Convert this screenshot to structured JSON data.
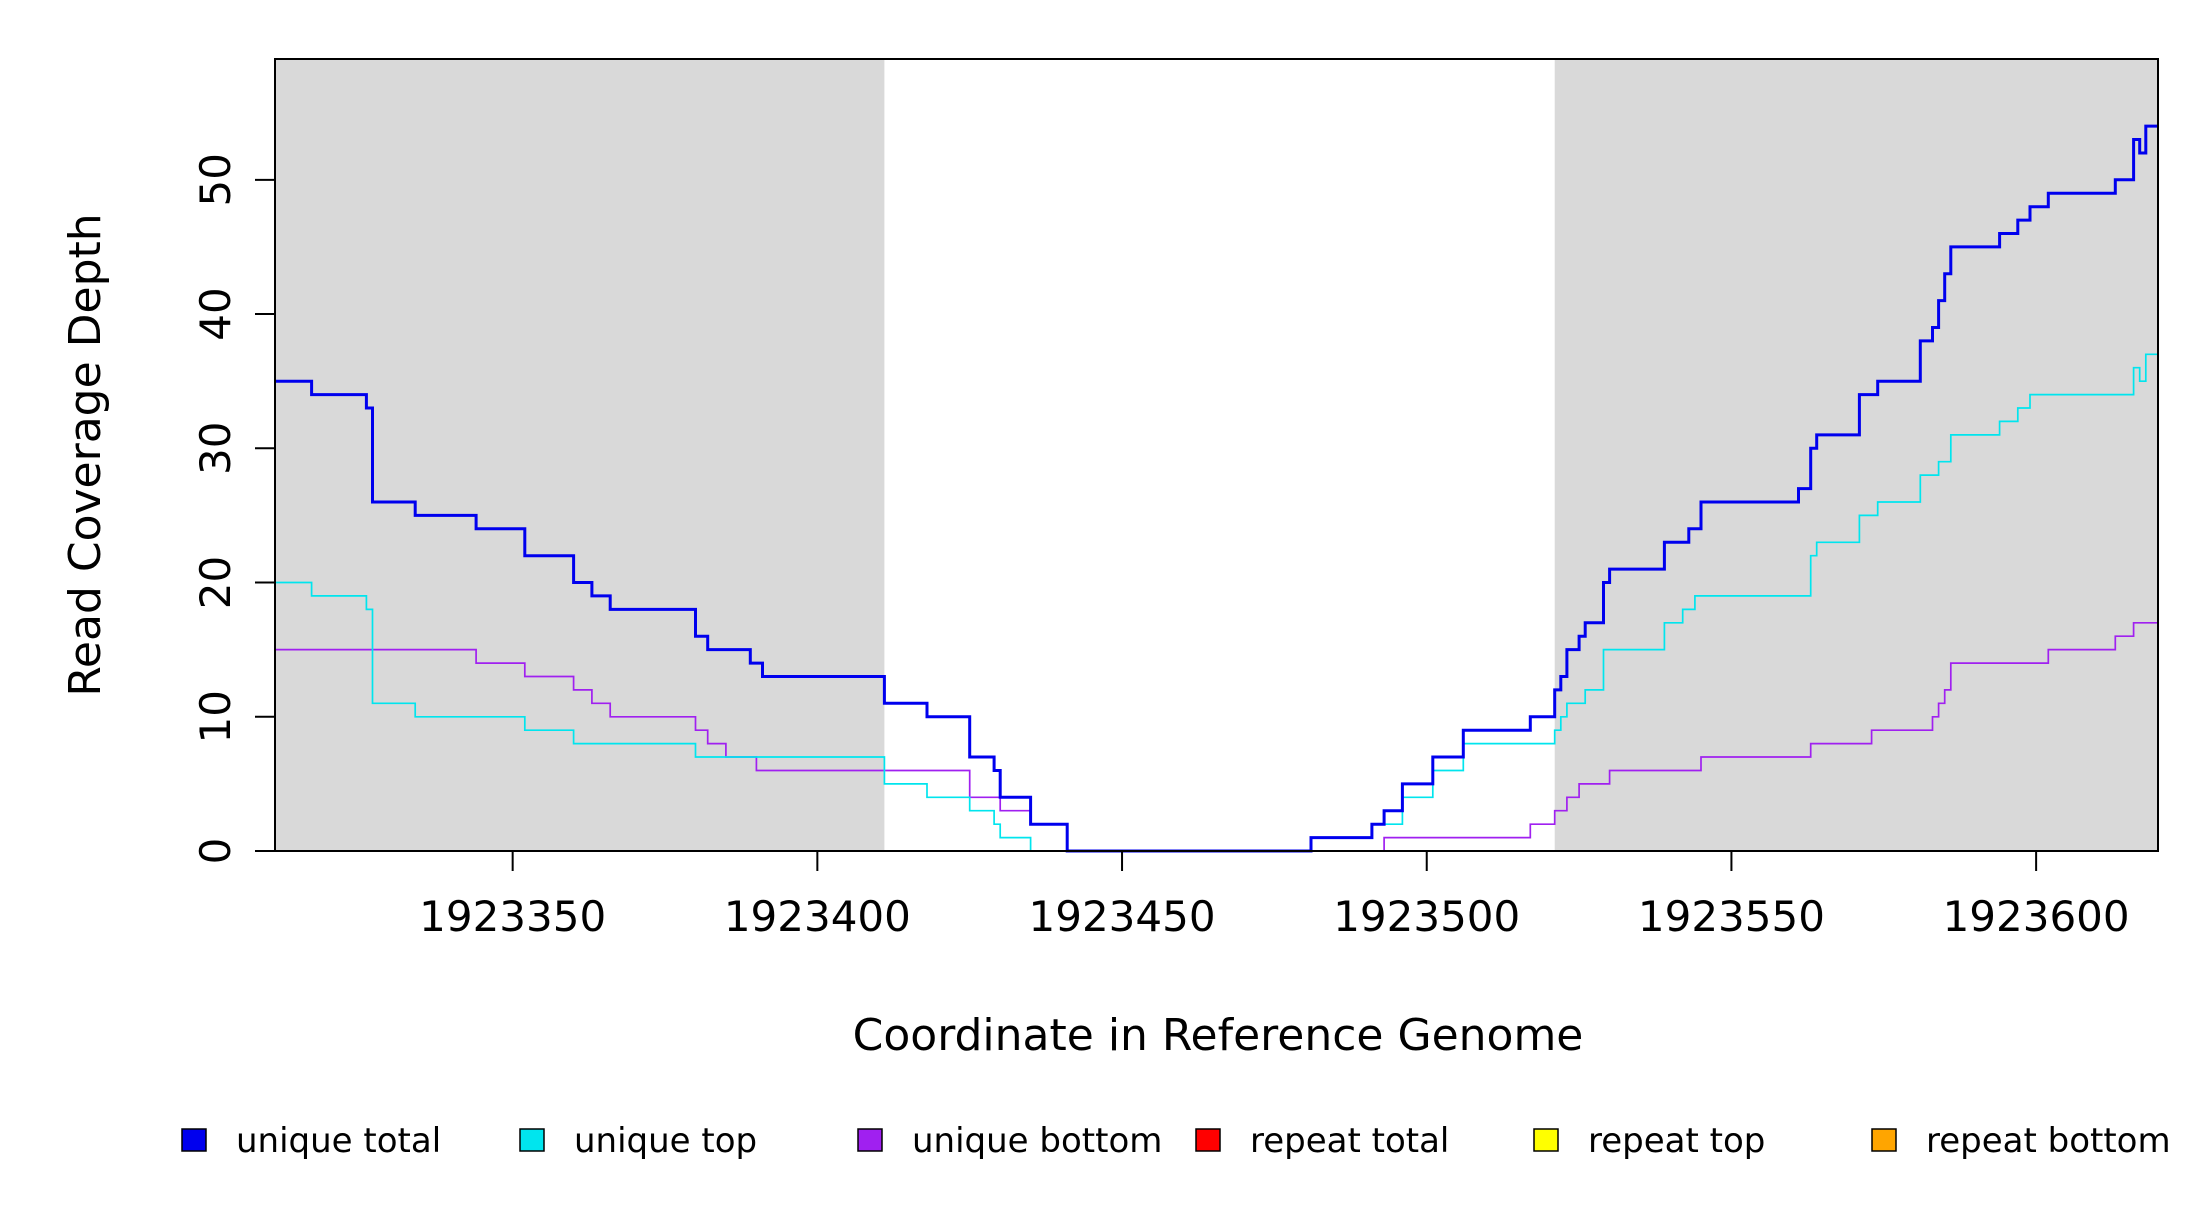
{
  "chart_data": {
    "type": "line",
    "xlabel": "Coordinate in Reference Genome",
    "ylabel": "Read Coverage Depth",
    "xlim": [
      1923311,
      1923620
    ],
    "ylim": [
      0,
      59
    ],
    "xticks": [
      {
        "value": 1923350,
        "label": "1923350"
      },
      {
        "value": 1923400,
        "label": "1923400"
      },
      {
        "value": 1923450,
        "label": "1923450"
      },
      {
        "value": 1923500,
        "label": "1923500"
      },
      {
        "value": 1923550,
        "label": "1923550"
      },
      {
        "value": 1923600,
        "label": "1923600"
      }
    ],
    "yticks": [
      {
        "value": 0,
        "label": "0"
      },
      {
        "value": 10,
        "label": "10"
      },
      {
        "value": 20,
        "label": "20"
      },
      {
        "value": 30,
        "label": "30"
      },
      {
        "value": 40,
        "label": "40"
      },
      {
        "value": 50,
        "label": "50"
      }
    ],
    "grid": false,
    "shaded_regions": [
      {
        "from": 1923311,
        "to": 1923411,
        "color": "#d9d9d9"
      },
      {
        "from": 1923521,
        "to": 1923620,
        "color": "#d9d9d9"
      }
    ],
    "legend_position": "bottom",
    "series": [
      {
        "name": "unique total",
        "color": "#0000ee",
        "line_weight": "thick",
        "points": [
          [
            1923311,
            35
          ],
          [
            1923317,
            34
          ],
          [
            1923326,
            33
          ],
          [
            1923327,
            26
          ],
          [
            1923334,
            25
          ],
          [
            1923344,
            24
          ],
          [
            1923352,
            22
          ],
          [
            1923360,
            20
          ],
          [
            1923363,
            19
          ],
          [
            1923366,
            18
          ],
          [
            1923380,
            16
          ],
          [
            1923382,
            15
          ],
          [
            1923389,
            14
          ],
          [
            1923391,
            13
          ],
          [
            1923411,
            11
          ],
          [
            1923418,
            10
          ],
          [
            1923425,
            7
          ],
          [
            1923429,
            6
          ],
          [
            1923430,
            4
          ],
          [
            1923435,
            2
          ],
          [
            1923441,
            0
          ],
          [
            1923481,
            1
          ],
          [
            1923491,
            2
          ],
          [
            1923493,
            3
          ],
          [
            1923496,
            5
          ],
          [
            1923501,
            7
          ],
          [
            1923506,
            9
          ],
          [
            1923517,
            10
          ],
          [
            1923521,
            12
          ],
          [
            1923522,
            13
          ],
          [
            1923523,
            15
          ],
          [
            1923525,
            16
          ],
          [
            1923526,
            17
          ],
          [
            1923529,
            20
          ],
          [
            1923530,
            21
          ],
          [
            1923539,
            23
          ],
          [
            1923543,
            24
          ],
          [
            1923545,
            26
          ],
          [
            1923561,
            27
          ],
          [
            1923563,
            30
          ],
          [
            1923564,
            31
          ],
          [
            1923571,
            34
          ],
          [
            1923574,
            35
          ],
          [
            1923581,
            38
          ],
          [
            1923583,
            39
          ],
          [
            1923584,
            41
          ],
          [
            1923585,
            43
          ],
          [
            1923586,
            45
          ],
          [
            1923594,
            46
          ],
          [
            1923597,
            47
          ],
          [
            1923599,
            48
          ],
          [
            1923602,
            49
          ],
          [
            1923613,
            50
          ],
          [
            1923616,
            53
          ],
          [
            1923617,
            52
          ],
          [
            1923618,
            54
          ],
          [
            1923620,
            54
          ]
        ]
      },
      {
        "name": "unique top",
        "color": "#00e5ee",
        "line_weight": "thin",
        "points": [
          [
            1923311,
            20
          ],
          [
            1923317,
            19
          ],
          [
            1923326,
            18
          ],
          [
            1923327,
            11
          ],
          [
            1923334,
            10
          ],
          [
            1923352,
            9
          ],
          [
            1923360,
            8
          ],
          [
            1923380,
            7
          ],
          [
            1923391,
            7
          ],
          [
            1923411,
            5
          ],
          [
            1923418,
            4
          ],
          [
            1923425,
            3
          ],
          [
            1923429,
            2
          ],
          [
            1923430,
            1
          ],
          [
            1923435,
            0
          ],
          [
            1923481,
            1
          ],
          [
            1923491,
            2
          ],
          [
            1923496,
            4
          ],
          [
            1923501,
            6
          ],
          [
            1923506,
            8
          ],
          [
            1923521,
            9
          ],
          [
            1923522,
            10
          ],
          [
            1923523,
            11
          ],
          [
            1923526,
            12
          ],
          [
            1923529,
            15
          ],
          [
            1923539,
            17
          ],
          [
            1923542,
            18
          ],
          [
            1923544,
            19
          ],
          [
            1923563,
            22
          ],
          [
            1923564,
            23
          ],
          [
            1923571,
            25
          ],
          [
            1923574,
            26
          ],
          [
            1923581,
            28
          ],
          [
            1923584,
            29
          ],
          [
            1923586,
            31
          ],
          [
            1923594,
            32
          ],
          [
            1923597,
            33
          ],
          [
            1923599,
            34
          ],
          [
            1923616,
            36
          ],
          [
            1923617,
            35
          ],
          [
            1923618,
            37
          ],
          [
            1923620,
            37
          ]
        ]
      },
      {
        "name": "unique bottom",
        "color": "#a020f0",
        "line_weight": "thin",
        "points": [
          [
            1923311,
            15
          ],
          [
            1923344,
            14
          ],
          [
            1923352,
            13
          ],
          [
            1923360,
            12
          ],
          [
            1923363,
            11
          ],
          [
            1923366,
            10
          ],
          [
            1923380,
            9
          ],
          [
            1923382,
            8
          ],
          [
            1923385,
            7
          ],
          [
            1923390,
            6
          ],
          [
            1923425,
            4
          ],
          [
            1923430,
            3
          ],
          [
            1923435,
            2
          ],
          [
            1923441,
            0
          ],
          [
            1923493,
            1
          ],
          [
            1923517,
            2
          ],
          [
            1923521,
            3
          ],
          [
            1923523,
            4
          ],
          [
            1923525,
            5
          ],
          [
            1923530,
            6
          ],
          [
            1923545,
            7
          ],
          [
            1923563,
            8
          ],
          [
            1923573,
            9
          ],
          [
            1923583,
            10
          ],
          [
            1923584,
            11
          ],
          [
            1923585,
            12
          ],
          [
            1923586,
            14
          ],
          [
            1923602,
            15
          ],
          [
            1923613,
            16
          ],
          [
            1923616,
            17
          ],
          [
            1923620,
            17
          ]
        ]
      },
      {
        "name": "repeat total",
        "color": "#ff0000",
        "line_weight": "thin",
        "points": [
          [
            1923311,
            0
          ],
          [
            1923620,
            0
          ]
        ]
      },
      {
        "name": "repeat top",
        "color": "#ffff00",
        "line_weight": "thin",
        "points": [
          [
            1923311,
            0
          ],
          [
            1923620,
            0
          ]
        ]
      },
      {
        "name": "repeat bottom",
        "color": "#ffa500",
        "line_weight": "thin",
        "points": [
          [
            1923311,
            0
          ],
          [
            1923620,
            0
          ]
        ]
      }
    ]
  }
}
